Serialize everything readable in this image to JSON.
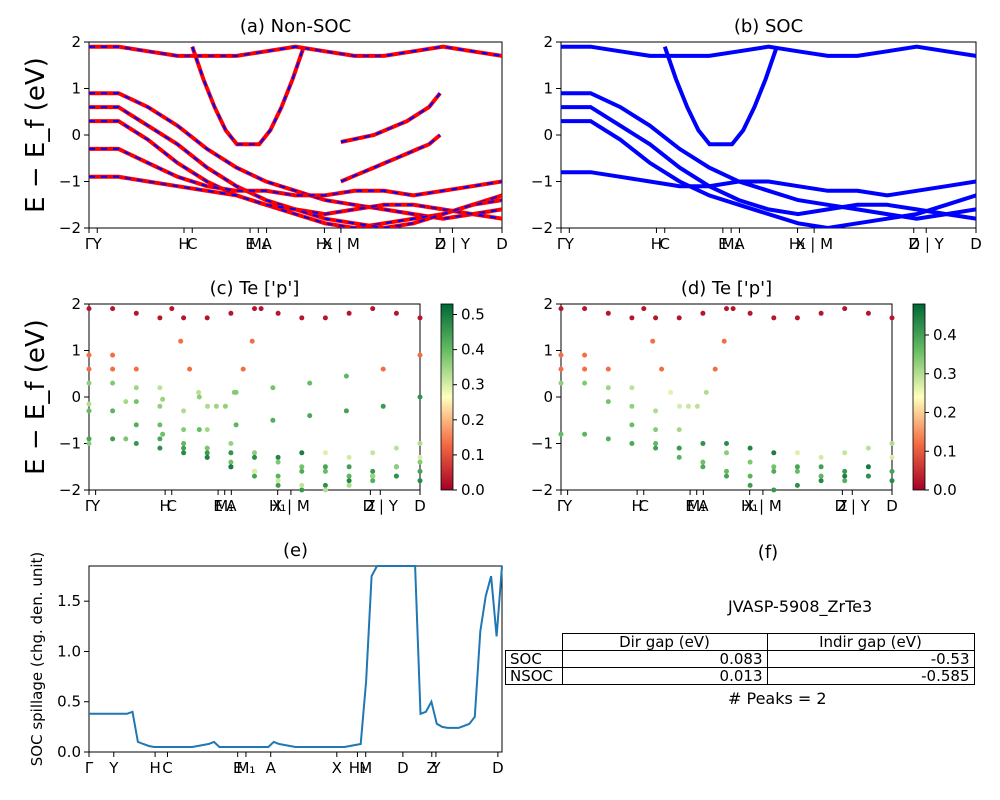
{
  "chart_data": [
    {
      "id": "a",
      "type": "line",
      "title": "(a) Non-SOC",
      "ylabel": "E − E_f (eV)",
      "ylim": [
        -2,
        2
      ],
      "yticks": [
        "2",
        "1",
        "0",
        "−1",
        "−2"
      ],
      "xticklabels": [
        "Γ",
        "Y",
        "H",
        "C",
        "E",
        "M₁",
        "A",
        "H₁",
        "X | M",
        "Z",
        "D | Y",
        "D"
      ],
      "series": [
        {
          "values": [
            0.9,
            0.9,
            0.6,
            0.2,
            -0.3,
            -0.7,
            -1.0,
            -1.2,
            -1.4,
            -1.5,
            -1.6,
            -1.7,
            -1.8,
            -1.7,
            -1.6
          ]
        },
        {
          "values": [
            0.6,
            0.6,
            0.2,
            -0.2,
            -0.7,
            -1.1,
            -1.4,
            -1.6,
            -1.7,
            -1.6,
            -1.5,
            -1.5,
            -1.6,
            -1.7,
            -1.8
          ]
        },
        {
          "values": [
            0.3,
            0.3,
            -0.1,
            -0.6,
            -1.0,
            -1.3,
            -1.5,
            -1.7,
            -1.9,
            -2.0,
            -1.9,
            -1.8,
            -1.7,
            -1.5,
            -1.3
          ]
        },
        {
          "values": [
            -0.3,
            -0.3,
            -0.6,
            -0.9,
            -1.1,
            -1.2,
            -1.2,
            -1.3,
            -1.3,
            -1.2,
            -1.2,
            -1.3,
            -1.2,
            -1.1,
            -1.0
          ]
        },
        {
          "values": [
            -0.9,
            -0.9,
            -1.0,
            -1.1,
            -1.2,
            -1.3,
            -1.5,
            -1.6,
            -1.8,
            -1.9,
            -2.0,
            -1.9,
            -1.7,
            -1.5,
            -1.4
          ]
        },
        {
          "values": [
            1.9,
            1.9,
            1.8,
            1.7,
            1.7,
            1.7,
            1.8,
            1.9,
            1.8,
            1.7,
            1.7,
            1.8,
            1.9,
            1.8,
            1.7
          ]
        },
        {
          "values": [
            1.9,
            1.2,
            0.6,
            0.1,
            -0.2,
            -0.2,
            -0.2,
            0.1,
            0.6,
            1.2,
            1.9
          ]
        },
        {
          "values": [
            -0.15,
            -0.1,
            -0.05,
            0.0,
            0.1,
            0.2,
            0.3,
            0.45,
            0.6,
            0.9
          ]
        },
        {
          "values": [
            -1.0,
            -0.9,
            -0.8,
            -0.7,
            -0.6,
            -0.5,
            -0.4,
            -0.3,
            -0.2,
            0.0
          ]
        }
      ]
    },
    {
      "id": "b",
      "type": "line",
      "title": "(b) SOC",
      "ylim": [
        -2,
        2
      ],
      "yticks": [
        "2",
        "1",
        "0",
        "−1",
        "−2"
      ],
      "xticklabels": [
        "Γ",
        "Y",
        "H",
        "C",
        "E",
        "M₁",
        "A",
        "H₁",
        "X | M",
        "Z",
        "D | Y",
        "D"
      ],
      "series": [
        {
          "values": [
            0.9,
            0.9,
            0.6,
            0.2,
            -0.3,
            -0.7,
            -1.0,
            -1.2,
            -1.4,
            -1.5,
            -1.6,
            -1.7,
            -1.8,
            -1.7,
            -1.6
          ]
        },
        {
          "values": [
            0.6,
            0.6,
            0.2,
            -0.2,
            -0.7,
            -1.1,
            -1.4,
            -1.6,
            -1.7,
            -1.6,
            -1.5,
            -1.5,
            -1.6,
            -1.7,
            -1.8
          ]
        },
        {
          "values": [
            0.3,
            0.3,
            -0.1,
            -0.6,
            -1.0,
            -1.3,
            -1.5,
            -1.7,
            -1.9,
            -2.0,
            -1.9,
            -1.8,
            -1.7,
            -1.5,
            -1.3
          ]
        },
        {
          "values": [
            -0.8,
            -0.8,
            -0.9,
            -1.0,
            -1.1,
            -1.1,
            -1.0,
            -1.0,
            -1.1,
            -1.2,
            -1.2,
            -1.3,
            -1.2,
            -1.1,
            -1.0
          ]
        },
        {
          "values": [
            1.9,
            1.9,
            1.8,
            1.7,
            1.7,
            1.7,
            1.8,
            1.9,
            1.8,
            1.7,
            1.7,
            1.8,
            1.9,
            1.8,
            1.7
          ]
        },
        {
          "values": [
            1.9,
            1.2,
            0.6,
            0.1,
            -0.2,
            -0.2,
            -0.2,
            0.1,
            0.6,
            1.2,
            1.9
          ]
        }
      ]
    },
    {
      "id": "c",
      "type": "scatter",
      "title": "(c)  Te ['p']",
      "ylim": [
        -2,
        2
      ],
      "yticks": [
        "2",
        "1",
        "0",
        "−1",
        "−2"
      ],
      "xticklabels": [
        "Γ",
        "Y",
        "H",
        "C",
        "E",
        "M₁",
        "A",
        "H₁",
        "X | M",
        "Z",
        "D | Y",
        "D"
      ],
      "colorbar": {
        "min": 0.0,
        "max": 0.53,
        "ticks": [
          "0.5",
          "0.4",
          "0.3",
          "0.2",
          "0.1",
          "0.0"
        ]
      }
    },
    {
      "id": "d",
      "type": "scatter",
      "title": "(d) Te ['p']",
      "ylim": [
        -2,
        2
      ],
      "yticks": [
        "2",
        "1",
        "0",
        "−1",
        "−2"
      ],
      "xticklabels": [
        "Γ",
        "Y",
        "H",
        "C",
        "E",
        "M₁",
        "A",
        "H₁",
        "X | M",
        "Z",
        "D | Y",
        "D"
      ],
      "colorbar": {
        "min": 0.0,
        "max": 0.48,
        "ticks": [
          "0.4",
          "0.3",
          "0.2",
          "0.1",
          "0.0"
        ]
      }
    },
    {
      "id": "e",
      "type": "line",
      "title": "(e)",
      "ylabel": "SOC spillage (chg. den. unit)",
      "ylim": [
        0,
        1.85
      ],
      "yticks": [
        "1.5",
        "1.0",
        "0.5",
        "0.0"
      ],
      "xticklabels": [
        "Γ",
        "Y",
        "H",
        "C",
        "E",
        "M₁",
        "A",
        "X",
        "H₁",
        "M",
        "D",
        "Z",
        "Y",
        "D"
      ],
      "series": [
        {
          "color": "#1f77b4",
          "values": [
            0.38,
            0.38,
            0.38,
            0.38,
            0.38,
            0.38,
            0.38,
            0.38,
            0.4,
            0.1,
            0.08,
            0.06,
            0.05,
            0.05,
            0.05,
            0.05,
            0.05,
            0.05,
            0.05,
            0.05,
            0.06,
            0.07,
            0.08,
            0.1,
            0.05,
            0.05,
            0.05,
            0.05,
            0.05,
            0.05,
            0.05,
            0.05,
            0.05,
            0.05,
            0.1,
            0.08,
            0.07,
            0.06,
            0.05,
            0.05,
            0.05,
            0.05,
            0.05,
            0.05,
            0.05,
            0.05,
            0.05,
            0.05,
            0.06,
            0.07,
            0.08,
            0.7,
            1.75,
            1.85,
            1.85,
            1.85,
            1.85,
            1.85,
            1.85,
            1.85,
            1.85,
            0.38,
            0.4,
            0.5,
            0.28,
            0.25,
            0.24,
            0.24,
            0.24,
            0.26,
            0.28,
            0.35,
            1.2,
            1.55,
            1.75,
            1.15,
            1.85
          ]
        }
      ]
    }
  ],
  "panel_f": {
    "label": "(f)",
    "title": "JVASP-5908_ZrTe3",
    "table": {
      "headers": [
        "",
        "Dir gap (eV)",
        "Indir gap (eV)"
      ],
      "rows": [
        [
          "SOC",
          "0.083",
          "-0.53"
        ],
        [
          "NSOC",
          "0.013",
          "-0.585"
        ]
      ]
    },
    "peaks": "# Peaks = 2"
  },
  "colors": {
    "band_nsoc": "#ff0000",
    "band_soc": "#0000ff",
    "spillage": "#1f77b4"
  }
}
